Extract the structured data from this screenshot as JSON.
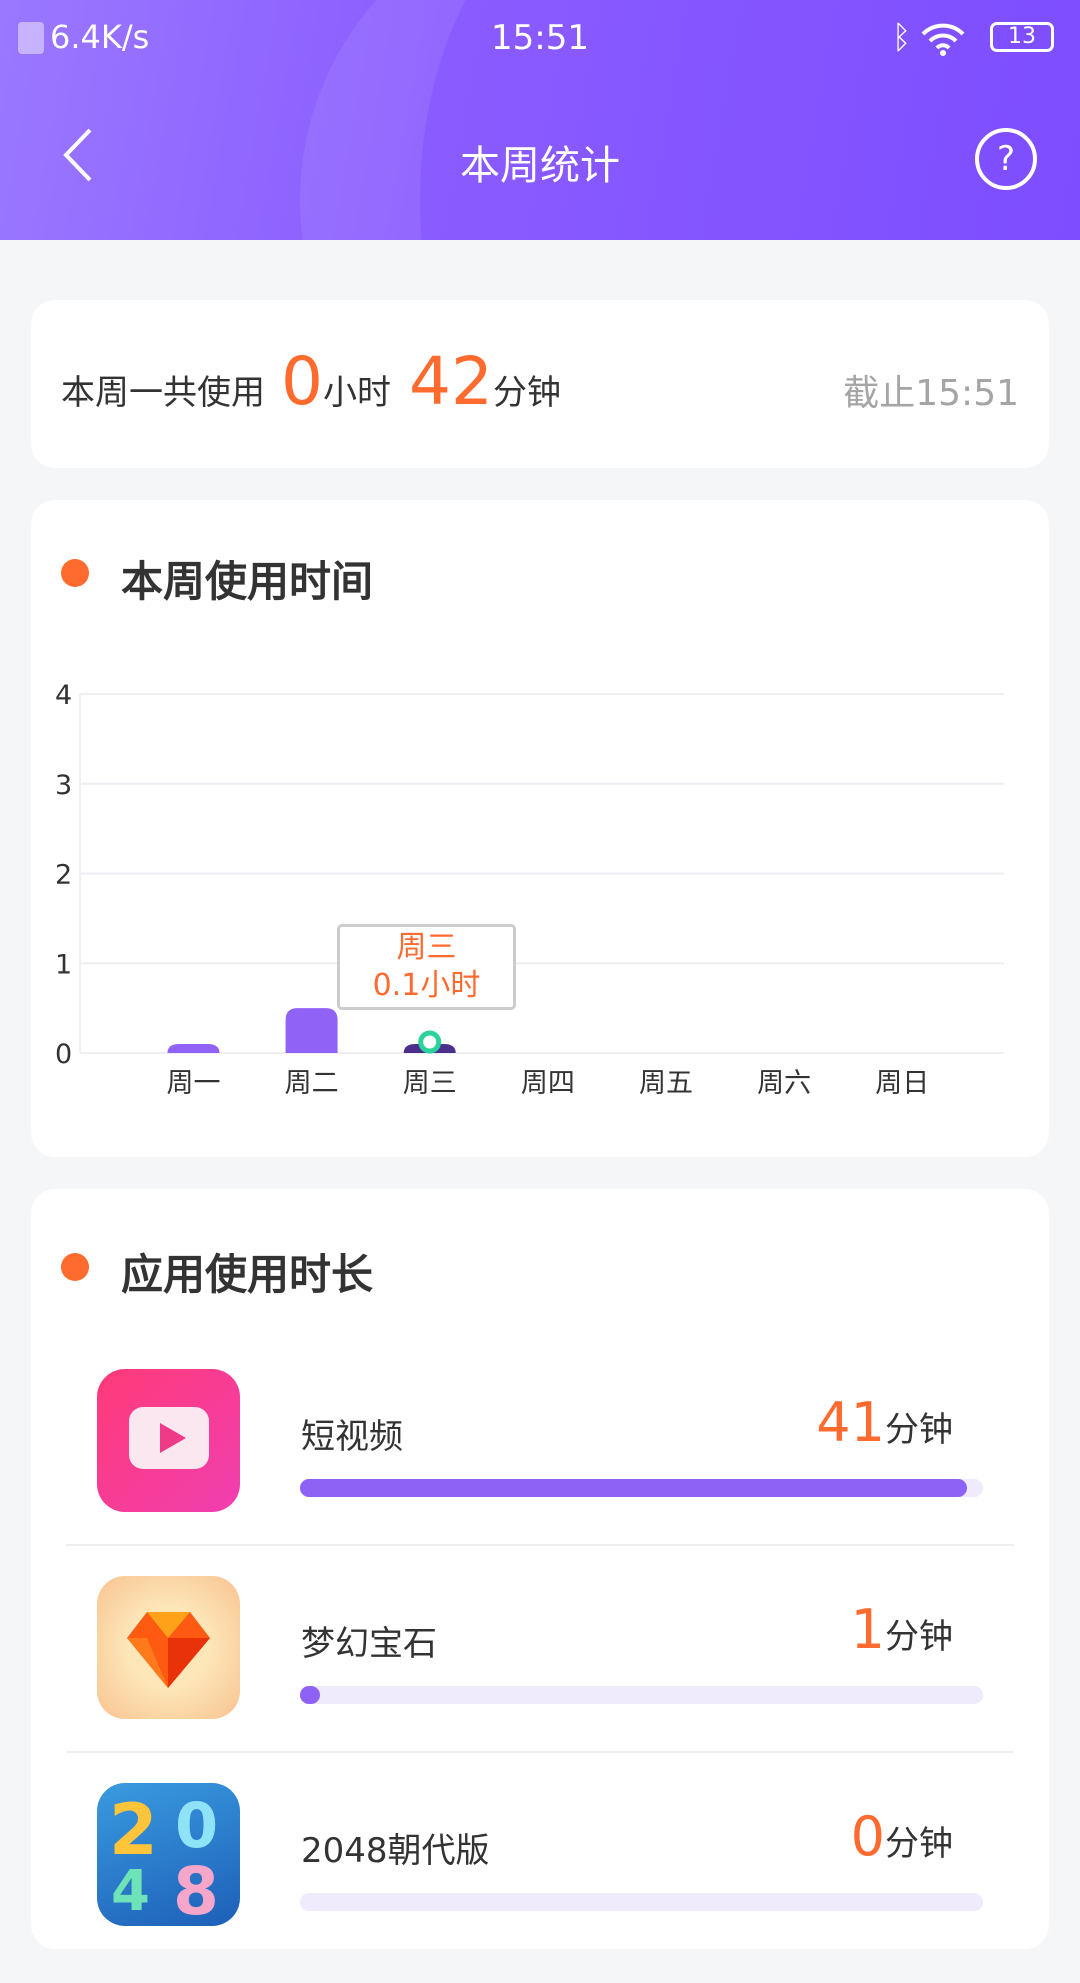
{
  "status_bar": {
    "net_speed": "6.4K/s",
    "time": "15:51",
    "battery": "13"
  },
  "header": {
    "title": "本周统计",
    "back_icon": "chevron-left-icon",
    "help_icon": "question-circle-icon"
  },
  "summary": {
    "label": "本周一共使用",
    "hours": "0",
    "hours_unit": "小时",
    "minutes": "42",
    "minutes_unit": "分钟",
    "as_of": "截止15:51"
  },
  "weekly": {
    "title": "本周使用时间"
  },
  "chart_data": {
    "type": "bar",
    "categories": [
      "周一",
      "周二",
      "周三",
      "周四",
      "周五",
      "周六",
      "周日"
    ],
    "values": [
      0.1,
      0.5,
      0.1,
      0,
      0,
      0,
      0
    ],
    "yticks": [
      "0",
      "1",
      "2",
      "3",
      "4"
    ],
    "ylim": [
      0,
      4
    ],
    "grid": true,
    "selected_index": 2,
    "tooltip": {
      "title": "周三",
      "value": "0.1小时"
    },
    "colors": {
      "bar": "#9063f6",
      "selected_bar": "#4b2f8c",
      "marker": "#2bd39a",
      "tooltip_text": "#ff6a2e"
    }
  },
  "apps": {
    "title": "应用使用时长",
    "items": [
      {
        "name": "短视频",
        "minutes": "41",
        "unit": "分钟",
        "progress": 0.976,
        "icon": "short-video-app-icon"
      },
      {
        "name": "梦幻宝石",
        "minutes": "1",
        "unit": "分钟",
        "progress": 0.03,
        "icon": "gem-game-app-icon"
      },
      {
        "name": "2048朝代版",
        "minutes": "0",
        "unit": "分钟",
        "progress": 0,
        "icon": "2048-game-app-icon"
      }
    ]
  },
  "colors": {
    "accent": "#8a5cff",
    "orange": "#ff6a2e"
  }
}
